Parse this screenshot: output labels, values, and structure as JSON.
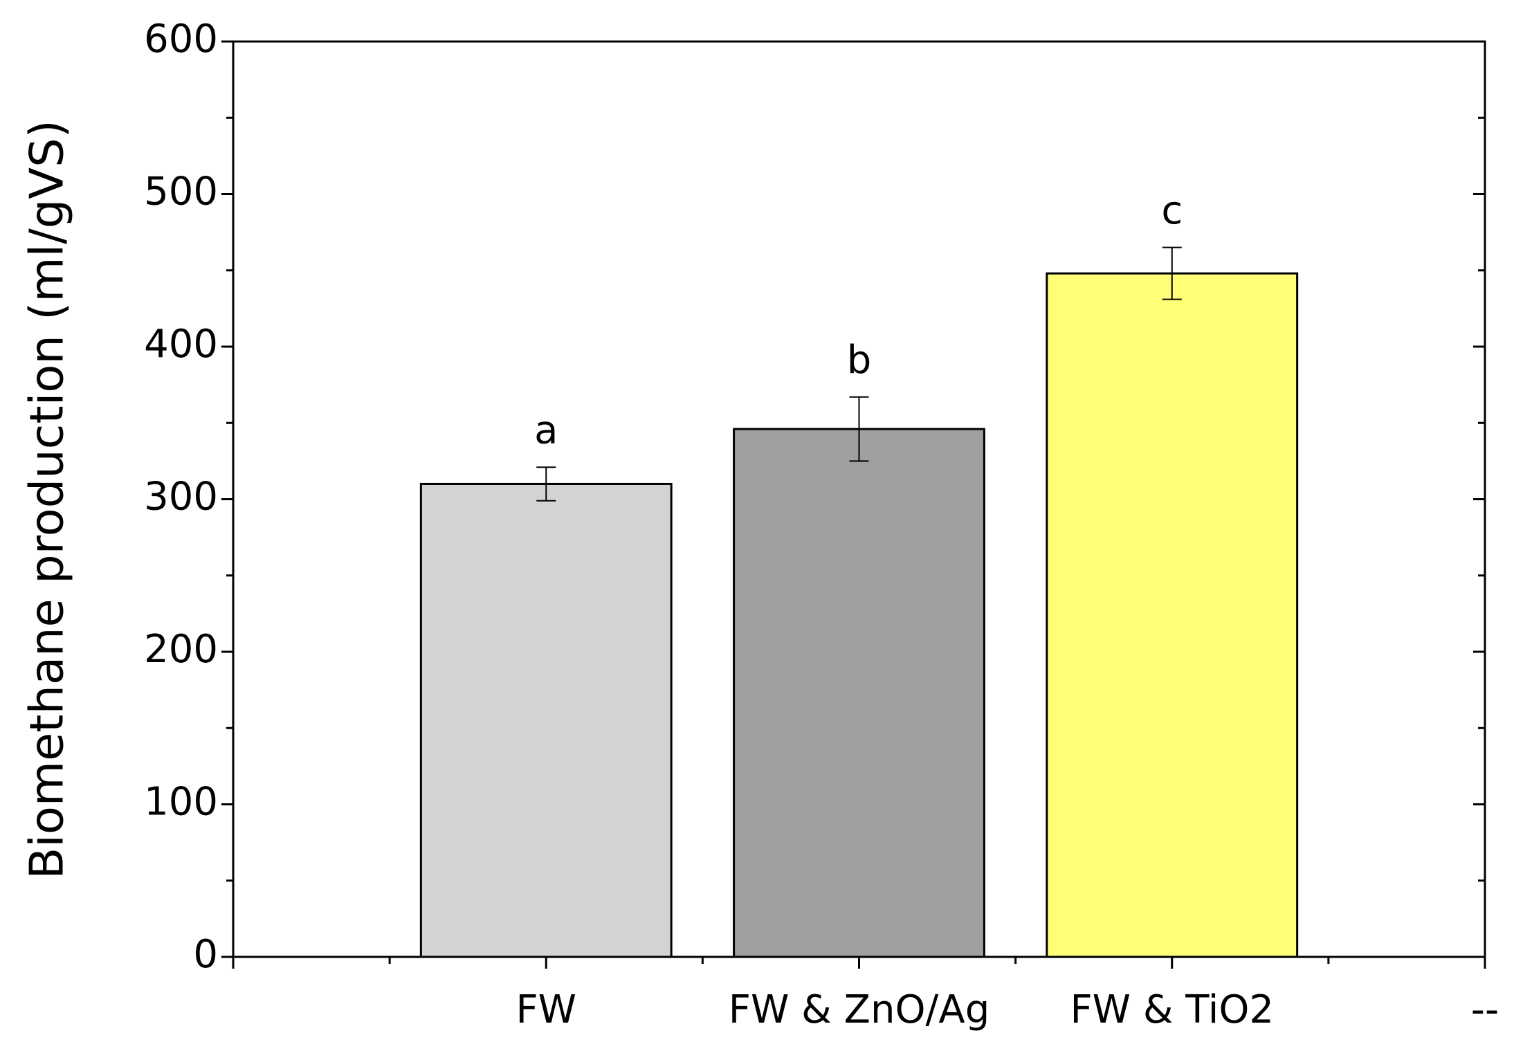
{
  "chart_data": {
    "type": "bar",
    "ylabel": "Biomethane production (ml/gVS)",
    "categories": [
      null,
      "FW",
      "FW & ZnO/Ag",
      "FW & TiO2",
      "--"
    ],
    "values": [
      null,
      310,
      346,
      448,
      null
    ],
    "errors": [
      null,
      11,
      21,
      17,
      null
    ],
    "annotations": [
      null,
      "a",
      "b",
      "c",
      null
    ],
    "colors": [
      null,
      "#d3d3d3",
      "#a0a0a0",
      "#ffff77",
      null
    ],
    "ylim": [
      0,
      600
    ],
    "yticks": [
      0,
      100,
      200,
      300,
      400,
      500,
      600
    ],
    "grid": false
  }
}
